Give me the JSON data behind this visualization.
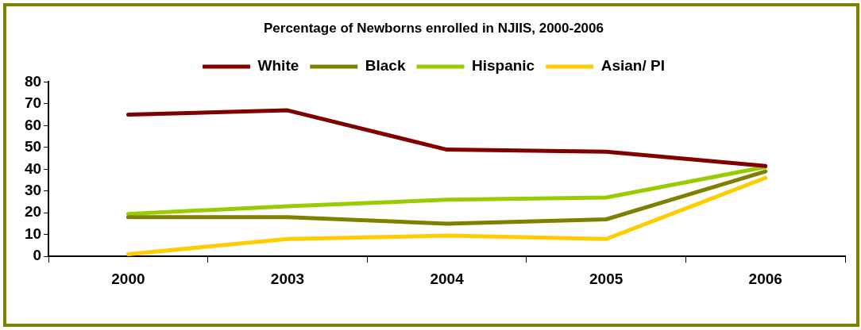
{
  "chart_data": {
    "type": "line",
    "title": "Percentage of Newborns enrolled in NJIIS, 2000-2006",
    "categories": [
      "2000",
      "2003",
      "2004",
      "2005",
      "2006"
    ],
    "series": [
      {
        "name": "White",
        "color": "#800000",
        "values": [
          65,
          67,
          49,
          48,
          41.5
        ]
      },
      {
        "name": "Black",
        "color": "#808000",
        "values": [
          18,
          18,
          15,
          17,
          39
        ]
      },
      {
        "name": "Hispanic",
        "color": "#99cc00",
        "values": [
          19.5,
          23,
          26,
          27,
          41
        ]
      },
      {
        "name": "Asian/ PI",
        "color": "#ffcc00",
        "values": [
          1,
          8,
          9.5,
          8,
          36
        ]
      }
    ],
    "ylim": [
      0,
      80
    ],
    "yticks": [
      0,
      10,
      20,
      30,
      40,
      50,
      60,
      70,
      80
    ],
    "grid": false,
    "legend": "top",
    "marker": "none",
    "line_style": "solid"
  }
}
